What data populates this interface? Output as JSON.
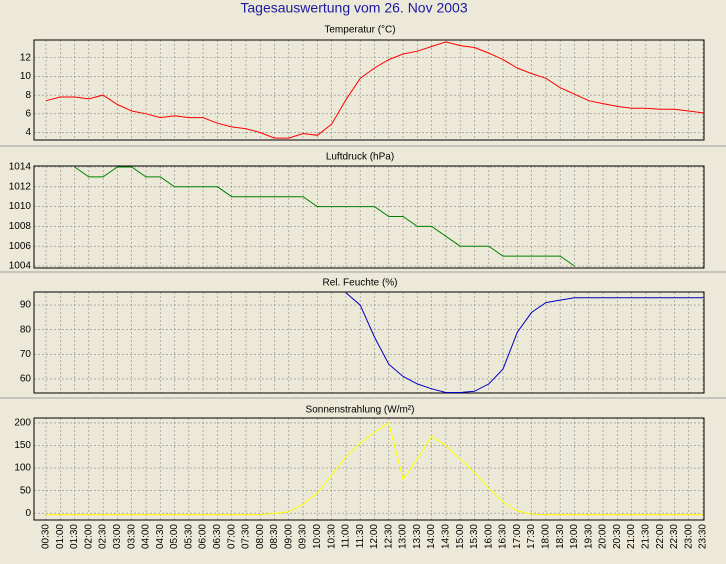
{
  "title": "Tagesauswertung vom 26. Nov 2003",
  "categories": [
    "00:30",
    "01:00",
    "01:30",
    "02:00",
    "02:30",
    "03:00",
    "03:30",
    "04:00",
    "04:30",
    "05:00",
    "05:30",
    "06:00",
    "06:30",
    "07:00",
    "07:30",
    "08:00",
    "08:30",
    "09:00",
    "09:30",
    "10:00",
    "10:30",
    "11:00",
    "11:30",
    "12:00",
    "12:30",
    "13:00",
    "13:30",
    "14:00",
    "14:30",
    "15:00",
    "15:30",
    "16:00",
    "16:30",
    "17:00",
    "17:30",
    "18:00",
    "18:30",
    "19:00",
    "19:30",
    "20:00",
    "20:30",
    "21:00",
    "21:30",
    "22:00",
    "22:30",
    "23:00",
    "23:30"
  ],
  "chart_data": [
    {
      "type": "line",
      "title": "Temperatur (°C)",
      "color": "#ff0000",
      "grid": true,
      "ylim": [
        3.2,
        13.9
      ],
      "yticks": [
        4,
        6,
        8,
        10,
        12
      ],
      "values": [
        7.4,
        7.8,
        7.8,
        7.6,
        8.0,
        7.0,
        6.3,
        6.0,
        5.6,
        5.8,
        5.6,
        5.6,
        5.0,
        4.6,
        4.4,
        4.0,
        3.4,
        3.4,
        3.9,
        3.7,
        4.9,
        7.5,
        9.8,
        10.9,
        11.8,
        12.4,
        12.7,
        13.2,
        13.7,
        13.3,
        13.1,
        12.5,
        11.8,
        10.9,
        10.3,
        9.8,
        8.8,
        8.1,
        7.4,
        7.1,
        6.8,
        6.6,
        6.6,
        6.5,
        6.5,
        6.3,
        6.1
      ]
    },
    {
      "type": "line",
      "title": "Luftdruck (hPa)",
      "color": "#008000",
      "grid": true,
      "ylim": [
        1003.8,
        1014.1
      ],
      "yticks": [
        1004,
        1006,
        1008,
        1010,
        1012,
        1014
      ],
      "values": [
        null,
        null,
        1014,
        1013,
        1013,
        1014,
        1014,
        1013,
        1013,
        1012,
        1012,
        1012,
        1012,
        1011,
        1011,
        1011,
        1011,
        1011,
        1011,
        1010,
        1010,
        1010,
        1010,
        1010,
        1009,
        1009,
        1008,
        1008,
        1007,
        1006,
        1006,
        1006,
        1005,
        1005,
        1005,
        1005,
        1005,
        1004,
        null,
        null,
        null,
        null,
        null,
        null,
        null,
        null,
        null
      ]
    },
    {
      "type": "line",
      "title": "Rel. Feuchte (%)",
      "color": "#0000c0",
      "grid": true,
      "ylim": [
        54.3,
        95.3
      ],
      "yticks": [
        60,
        70,
        80,
        90
      ],
      "values": [
        null,
        null,
        null,
        null,
        null,
        null,
        null,
        null,
        null,
        null,
        null,
        null,
        null,
        null,
        null,
        null,
        null,
        null,
        null,
        null,
        null,
        95,
        90,
        77,
        66,
        61,
        58,
        56,
        54.5,
        54.5,
        55,
        58,
        64,
        79,
        87,
        91,
        92,
        93,
        93,
        93,
        93,
        93,
        93,
        93,
        93,
        93,
        93
      ]
    },
    {
      "type": "line",
      "title": "Sonnenstrahlung (W/m²)",
      "color": "#ffff00",
      "grid": true,
      "ylim": [
        -15,
        211
      ],
      "yticks": [
        0,
        50,
        100,
        150,
        200
      ],
      "values": [
        -3,
        -3,
        -3,
        -3,
        -3,
        -3,
        -3,
        -3,
        -3,
        -3,
        -3,
        -3,
        -3,
        -3,
        -3,
        -3,
        0,
        3,
        20,
        45,
        85,
        125,
        155,
        180,
        200,
        75,
        120,
        170,
        150,
        120,
        90,
        55,
        25,
        5,
        -2,
        -3,
        -3,
        -3,
        -3,
        -3,
        -3,
        -3,
        -3,
        -3,
        -3,
        -3,
        -3
      ]
    }
  ]
}
